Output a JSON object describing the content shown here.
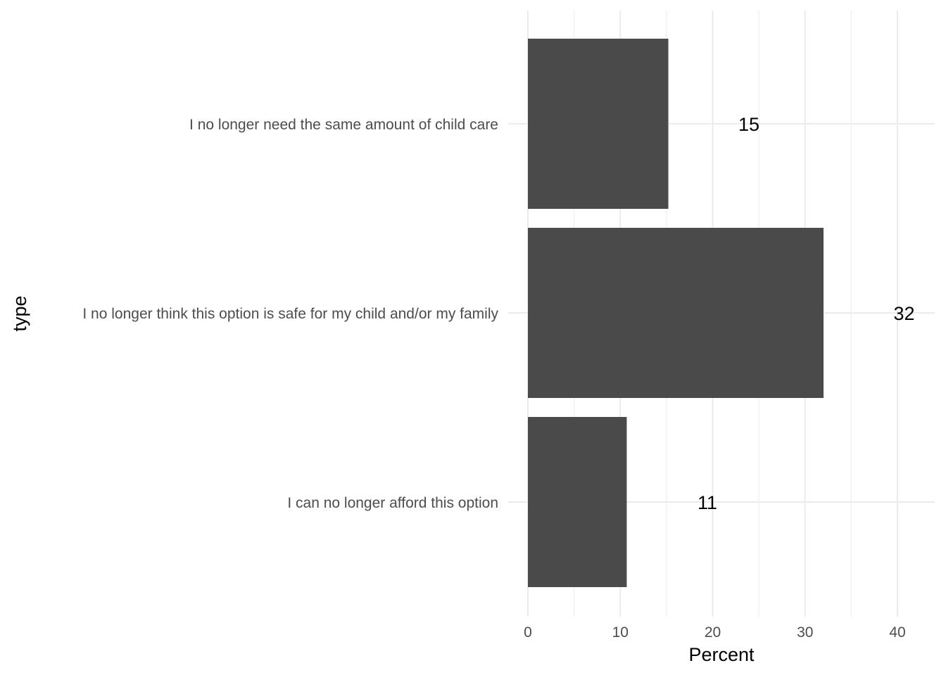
{
  "chart_data": {
    "type": "bar",
    "orientation": "horizontal",
    "categories": [
      "I no longer need the same amount of child care",
      "I no longer think this option is safe for my child and/or my family",
      "I can no longer afford this option"
    ],
    "values": [
      15.2,
      32,
      10.7
    ],
    "data_labels": [
      "15",
      "32",
      "11"
    ],
    "xlabel": "Percent",
    "ylabel": "type",
    "xlim": [
      0,
      44
    ],
    "x_ticks": [
      0,
      10,
      20,
      30,
      40
    ],
    "grid": true,
    "bar_color": "#4a4a4a",
    "grid_color": "#ebebeb"
  }
}
